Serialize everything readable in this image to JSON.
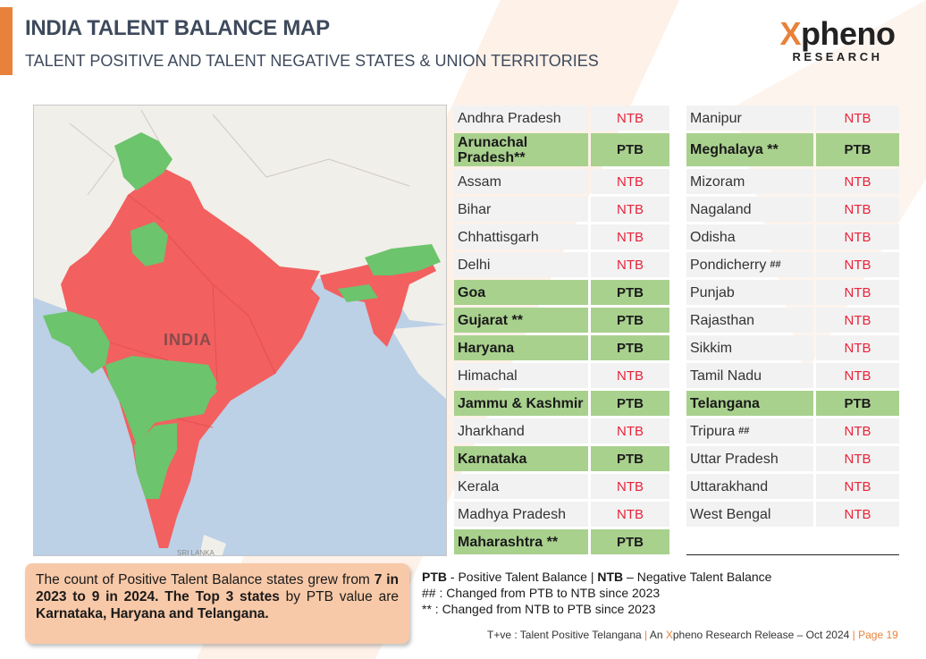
{
  "header": {
    "title": "INDIA TALENT BALANCE MAP",
    "subtitle": "TALENT POSITIVE AND TALENT NEGATIVE STATES & UNION TERRITORIES"
  },
  "logo": {
    "x_letter": "X",
    "word_rest": "pheno",
    "sub": "RESEARCH",
    "colors": {
      "accent": "#e8823a",
      "text": "#222222"
    }
  },
  "map": {
    "country_label": "INDIA",
    "neighbor_label": "SRI LANKA",
    "colors": {
      "ptb": "#6cc46c",
      "ntb": "#f26060",
      "water": "#bcd0e6",
      "land": "#f1efe9"
    }
  },
  "left_table": [
    {
      "state": "Andhra Pradesh",
      "status": "NTB",
      "suffix": ""
    },
    {
      "state": "Arunachal Pradesh**",
      "status": "PTB",
      "suffix": ""
    },
    {
      "state": "Assam",
      "status": "NTB",
      "suffix": ""
    },
    {
      "state": "Bihar",
      "status": "NTB",
      "suffix": ""
    },
    {
      "state": "Chhattisgarh",
      "status": "NTB",
      "suffix": ""
    },
    {
      "state": "Delhi",
      "status": "NTB",
      "suffix": ""
    },
    {
      "state": "Goa",
      "status": "PTB",
      "suffix": ""
    },
    {
      "state": "Gujarat **",
      "status": "PTB",
      "suffix": ""
    },
    {
      "state": "Haryana",
      "status": "PTB",
      "suffix": ""
    },
    {
      "state": "Himachal",
      "status": "NTB",
      "suffix": ""
    },
    {
      "state": "Jammu & Kashmir",
      "status": "PTB",
      "suffix": ""
    },
    {
      "state": "Jharkhand",
      "status": "NTB",
      "suffix": ""
    },
    {
      "state": "Karnataka",
      "status": "PTB",
      "suffix": ""
    },
    {
      "state": "Kerala",
      "status": "NTB",
      "suffix": ""
    },
    {
      "state": "Madhya Pradesh",
      "status": "NTB",
      "suffix": ""
    },
    {
      "state": "Maharashtra **",
      "status": "PTB",
      "suffix": ""
    }
  ],
  "right_table": [
    {
      "state": "Manipur",
      "status": "NTB",
      "suffix": ""
    },
    {
      "state": "Meghalaya **",
      "status": "PTB",
      "suffix": ""
    },
    {
      "state": "Mizoram",
      "status": "NTB",
      "suffix": ""
    },
    {
      "state": "Nagaland",
      "status": "NTB",
      "suffix": ""
    },
    {
      "state": "Odisha",
      "status": "NTB",
      "suffix": ""
    },
    {
      "state": "Pondicherry",
      "status": "NTB",
      "suffix": "##"
    },
    {
      "state": "Punjab",
      "status": "NTB",
      "suffix": ""
    },
    {
      "state": "Rajasthan",
      "status": "NTB",
      "suffix": ""
    },
    {
      "state": "Sikkim",
      "status": "NTB",
      "suffix": ""
    },
    {
      "state": "Tamil Nadu",
      "status": "NTB",
      "suffix": ""
    },
    {
      "state": "Telangana",
      "status": "PTB",
      "suffix": ""
    },
    {
      "state": "Tripura",
      "status": "NTB",
      "suffix": "##"
    },
    {
      "state": "Uttar Pradesh",
      "status": "NTB",
      "suffix": ""
    },
    {
      "state": "Uttarakhand",
      "status": "NTB",
      "suffix": ""
    },
    {
      "state": "West Bengal",
      "status": "NTB",
      "suffix": ""
    }
  ],
  "info_box": {
    "line1": "The count of Positive Talent Balance states grew from ",
    "line1_bold": "7 in 2023 to 9 in 2024.",
    "line2_bold_a": "The Top 3 states",
    "line2": " by PTB value are ",
    "line2_bold_b": "Karnataka, Haryana and Telangana."
  },
  "legend": {
    "ptb_abbr": "PTB",
    "ptb_text": " - Positive Talent Balance | ",
    "ntb_abbr": "NTB",
    "ntb_text": " – Negative Talent Balance",
    "hash_note": "## : Changed from PTB to NTB since 2023",
    "star_note": "** : Changed from NTB to PTB since 2023"
  },
  "footer": {
    "part1": "T+ve : Talent Positive Telangana ",
    "sep": "|",
    "part2a": " An ",
    "x": "X",
    "part2b": "pheno Research Release – Oct 2024 ",
    "page": "Page 19"
  }
}
